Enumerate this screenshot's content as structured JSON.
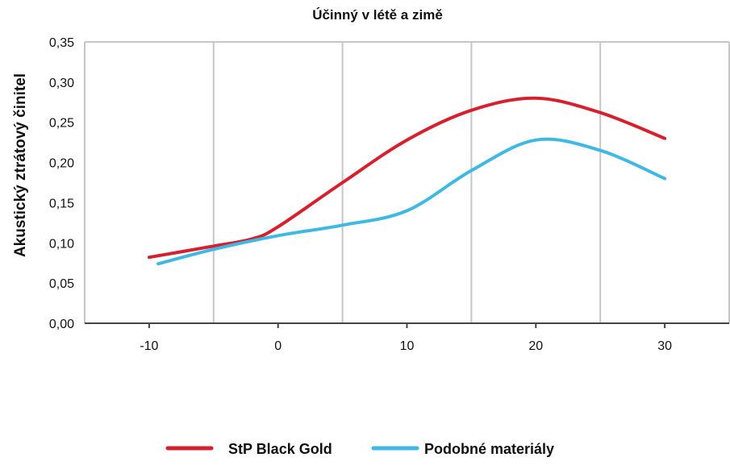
{
  "chart_data": {
    "type": "line",
    "title": "Účinný v létě a zimě",
    "xlabel": "",
    "ylabel": "Akustický ztrátový činitel",
    "xlim": [
      -15,
      35
    ],
    "ylim": [
      0,
      0.35
    ],
    "x_ticks": [
      -10,
      0,
      10,
      20,
      30
    ],
    "x_tick_labels": [
      "-10",
      "0",
      "10",
      "20",
      "30"
    ],
    "y_ticks": [
      0,
      0.05,
      0.1,
      0.15,
      0.2,
      0.25,
      0.3,
      0.35
    ],
    "y_tick_labels": [
      "0,00",
      "0,05",
      "0,10",
      "0,15",
      "0,20",
      "0,25",
      "0,30",
      "0,35"
    ],
    "grid": "vertical",
    "legend_position": "bottom",
    "series": [
      {
        "name": "StP Black Gold",
        "color": "#d7202e",
        "points": [
          [
            -10,
            0.082
          ],
          [
            -5,
            0.096
          ],
          [
            -2,
            0.105
          ],
          [
            0,
            0.12
          ],
          [
            5,
            0.175
          ],
          [
            10,
            0.228
          ],
          [
            15,
            0.265
          ],
          [
            20,
            0.28
          ],
          [
            25,
            0.262
          ],
          [
            30,
            0.23
          ]
        ]
      },
      {
        "name": "Podobné materiály",
        "color": "#3fb9e4",
        "points": [
          [
            -9.3,
            0.074
          ],
          [
            -5,
            0.092
          ],
          [
            0,
            0.109
          ],
          [
            5,
            0.122
          ],
          [
            10,
            0.14
          ],
          [
            15,
            0.19
          ],
          [
            20,
            0.228
          ],
          [
            25,
            0.215
          ],
          [
            30,
            0.18
          ]
        ]
      }
    ]
  }
}
